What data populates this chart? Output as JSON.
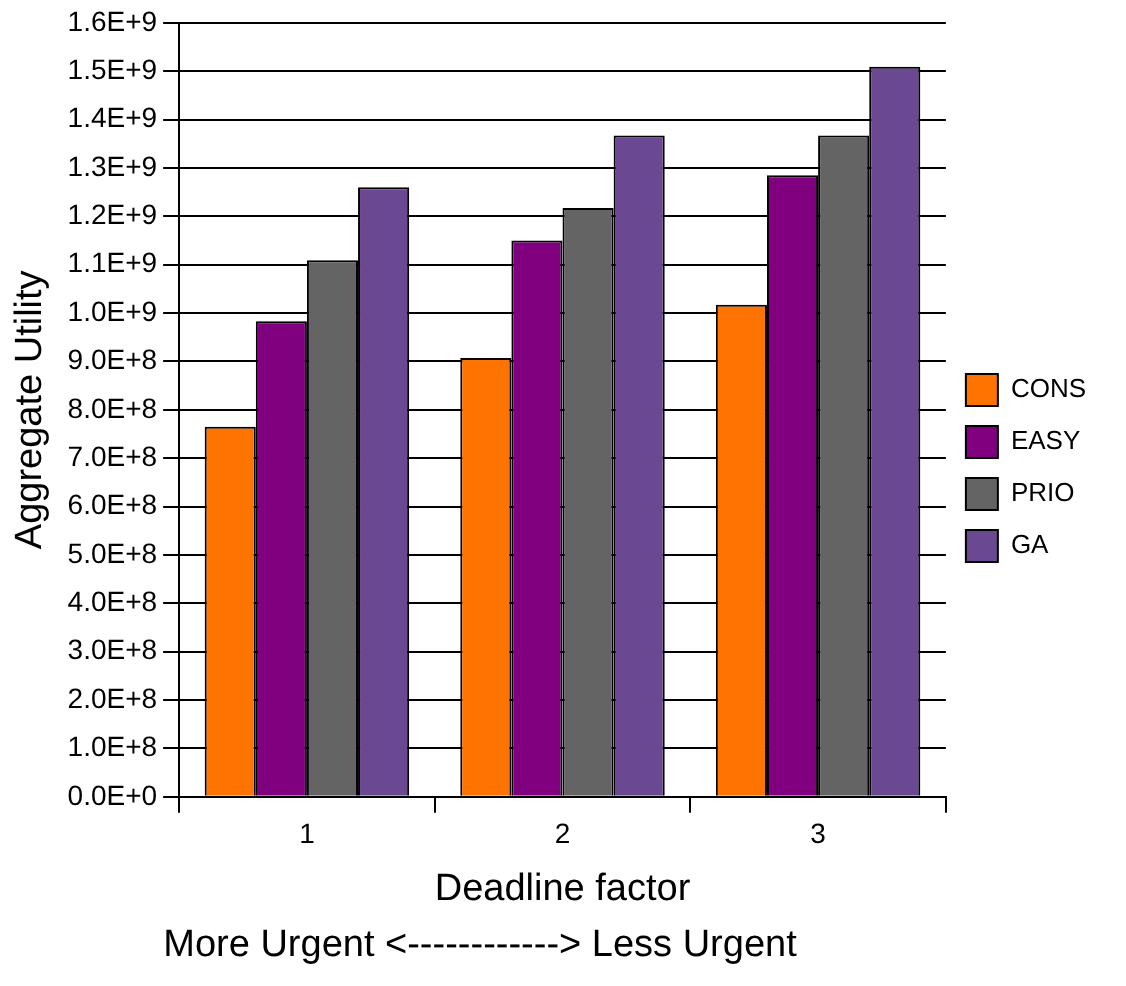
{
  "chart_data": {
    "type": "bar",
    "xlabel": "Deadline factor",
    "ylabel": "Aggregate Utility",
    "annotations": [
      "More Urgent <------------> Less Urgent"
    ],
    "categories": [
      "1",
      "2",
      "3"
    ],
    "series": [
      {
        "name": "CONS",
        "color": "#ff7300",
        "values": [
          765000000,
          907000000,
          1017000000
        ]
      },
      {
        "name": "EASY",
        "color": "#800080",
        "values": [
          983000000,
          1150000000,
          1285000000
        ]
      },
      {
        "name": "PRIO",
        "color": "#646464",
        "values": [
          1109000000,
          1217000000,
          1367000000
        ]
      },
      {
        "name": "GA",
        "color": "#6a4892",
        "values": [
          1260000000,
          1367000000,
          1509000000
        ]
      }
    ],
    "ylim": [
      0,
      1600000000
    ],
    "yticks": [
      {
        "value": 0,
        "label": "0.0E+0"
      },
      {
        "value": 100000000,
        "label": "1.0E+8"
      },
      {
        "value": 200000000,
        "label": "2.0E+8"
      },
      {
        "value": 300000000,
        "label": "3.0E+8"
      },
      {
        "value": 400000000,
        "label": "4.0E+8"
      },
      {
        "value": 500000000,
        "label": "5.0E+8"
      },
      {
        "value": 600000000,
        "label": "6.0E+8"
      },
      {
        "value": 700000000,
        "label": "7.0E+8"
      },
      {
        "value": 800000000,
        "label": "8.0E+8"
      },
      {
        "value": 900000000,
        "label": "9.0E+8"
      },
      {
        "value": 1000000000,
        "label": "1.0E+9"
      },
      {
        "value": 1100000000,
        "label": "1.1E+9"
      },
      {
        "value": 1200000000,
        "label": "1.2E+9"
      },
      {
        "value": 1300000000,
        "label": "1.3E+9"
      },
      {
        "value": 1400000000,
        "label": "1.4E+9"
      },
      {
        "value": 1500000000,
        "label": "1.5E+9"
      },
      {
        "value": 1600000000,
        "label": "1.6E+9"
      }
    ],
    "grid": "y",
    "legend": "right"
  }
}
